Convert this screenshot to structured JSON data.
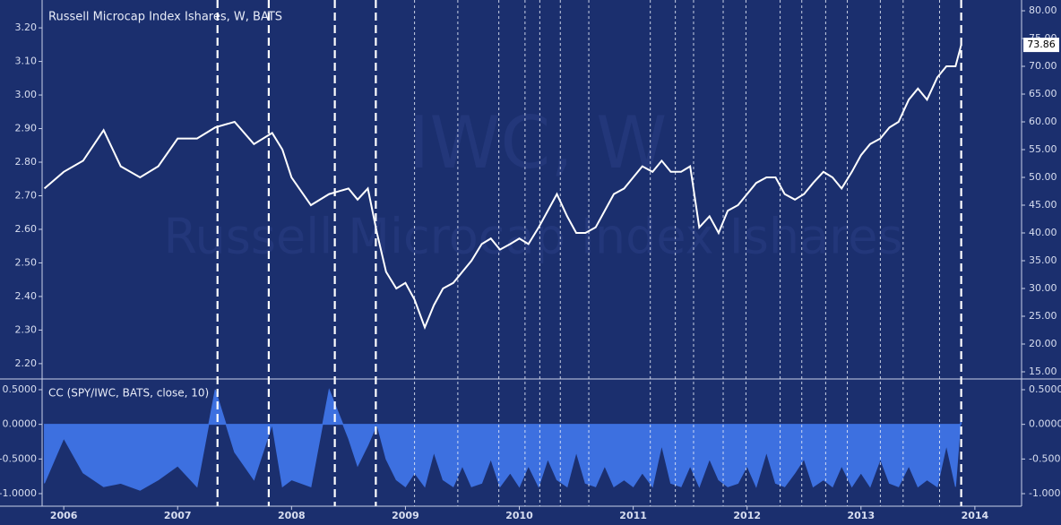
{
  "chart_data": [
    {
      "type": "line",
      "title": "Russell Microcap Index Ishares, W, BATS",
      "watermark": [
        "IWC, W",
        "Russell Microcap Index Ishares"
      ],
      "x": [
        2005.83,
        2006.0,
        2006.17,
        2006.35,
        2006.5,
        2006.67,
        2006.83,
        2007.0,
        2007.17,
        2007.33,
        2007.5,
        2007.67,
        2007.83,
        2007.92,
        2008.0,
        2008.17,
        2008.33,
        2008.5,
        2008.58,
        2008.67,
        2008.75,
        2008.83,
        2008.92,
        2009.0,
        2009.08,
        2009.17,
        2009.25,
        2009.33,
        2009.42,
        2009.5,
        2009.58,
        2009.67,
        2009.75,
        2009.83,
        2009.92,
        2010.0,
        2010.08,
        2010.17,
        2010.25,
        2010.33,
        2010.42,
        2010.5,
        2010.58,
        2010.67,
        2010.75,
        2010.83,
        2010.92,
        2011.0,
        2011.08,
        2011.17,
        2011.25,
        2011.33,
        2011.42,
        2011.5,
        2011.58,
        2011.67,
        2011.75,
        2011.83,
        2011.92,
        2012.0,
        2012.08,
        2012.17,
        2012.25,
        2012.33,
        2012.42,
        2012.5,
        2012.58,
        2012.67,
        2012.75,
        2012.83,
        2012.92,
        2013.0,
        2013.08,
        2013.17,
        2013.25,
        2013.33,
        2013.42,
        2013.5,
        2013.58,
        2013.67,
        2013.75,
        2013.83,
        2013.88
      ],
      "series": [
        {
          "color": "#ffffff",
          "axis": "y2",
          "values": [
            48,
            51,
            53,
            58.5,
            52,
            50,
            52,
            57,
            57,
            59,
            60,
            56,
            58,
            55,
            50,
            45,
            47,
            48,
            46,
            48,
            40,
            33,
            30,
            31,
            28,
            23,
            27,
            30,
            31,
            33,
            35,
            38,
            39,
            37,
            38,
            39,
            38,
            41,
            44,
            47,
            43,
            40,
            40,
            41,
            44,
            47,
            48,
            50,
            52,
            51,
            53,
            51,
            51,
            52,
            41,
            43,
            40,
            44,
            45,
            47,
            49,
            50,
            50,
            47,
            46,
            47,
            49,
            51,
            50,
            48,
            51,
            54,
            56,
            57,
            59,
            60,
            64,
            66,
            64,
            68,
            70,
            70,
            73.86
          ]
        }
      ],
      "xlim": [
        2005.81,
        2014.41
      ],
      "ylim": [
        2.157,
        3.283
      ],
      "yticks": [
        {
          "value": 2.2,
          "label": "2.20"
        },
        {
          "value": 2.3,
          "label": "2.30"
        },
        {
          "value": 2.4,
          "label": "2.40"
        },
        {
          "value": 2.5,
          "label": "2.50"
        },
        {
          "value": 2.6,
          "label": "2.60"
        },
        {
          "value": 2.7,
          "label": "2.70"
        },
        {
          "value": 2.8,
          "label": "2.80"
        },
        {
          "value": 2.9,
          "label": "2.90"
        },
        {
          "value": 3.0,
          "label": "3.00"
        },
        {
          "value": 3.1,
          "label": "3.10"
        },
        {
          "value": 3.2,
          "label": "3.20"
        }
      ],
      "y2lim": [
        13.87,
        81.94
      ],
      "y2ticks": [
        {
          "value": 15,
          "label": "15.00"
        },
        {
          "value": 20,
          "label": "20.00"
        },
        {
          "value": 25,
          "label": "25.00"
        },
        {
          "value": 30,
          "label": "30.00"
        },
        {
          "value": 35,
          "label": "35.00"
        },
        {
          "value": 40,
          "label": "40.00"
        },
        {
          "value": 45,
          "label": "45.00"
        },
        {
          "value": 50,
          "label": "50.00"
        },
        {
          "value": 55,
          "label": "55.00"
        },
        {
          "value": 60,
          "label": "60.00"
        },
        {
          "value": 65,
          "label": "65.00"
        },
        {
          "value": 70,
          "label": "70.00"
        },
        {
          "value": 75,
          "label": "75.00"
        },
        {
          "value": 80,
          "label": "80.00"
        }
      ],
      "events_major": [
        2007.35,
        2007.8,
        2008.38,
        2008.74,
        2013.88
      ],
      "events_minor": [
        2009.08,
        2009.46,
        2009.82,
        2010.05,
        2010.18,
        2010.36,
        2010.61,
        2011.15,
        2011.37,
        2011.53,
        2011.79,
        2011.99,
        2012.29,
        2012.48,
        2012.69,
        2012.88,
        2013.17,
        2013.37,
        2013.69
      ]
    },
    {
      "type": "area",
      "title": "CC (SPY/IWC, BATS, close, 10)",
      "color": "#3d70e0",
      "x": [
        2005.83,
        2006.0,
        2006.17,
        2006.35,
        2006.5,
        2006.67,
        2006.83,
        2007.0,
        2007.17,
        2007.33,
        2007.5,
        2007.67,
        2007.83,
        2007.92,
        2008.0,
        2008.17,
        2008.33,
        2008.5,
        2008.58,
        2008.67,
        2008.75,
        2008.83,
        2008.92,
        2009.0,
        2009.08,
        2009.17,
        2009.25,
        2009.33,
        2009.42,
        2009.5,
        2009.58,
        2009.67,
        2009.75,
        2009.83,
        2009.92,
        2010.0,
        2010.08,
        2010.17,
        2010.25,
        2010.33,
        2010.42,
        2010.5,
        2010.58,
        2010.67,
        2010.75,
        2010.83,
        2010.92,
        2011.0,
        2011.08,
        2011.17,
        2011.25,
        2011.33,
        2011.42,
        2011.5,
        2011.58,
        2011.67,
        2011.75,
        2011.83,
        2011.92,
        2012.0,
        2012.08,
        2012.17,
        2012.25,
        2012.33,
        2012.42,
        2012.5,
        2012.58,
        2012.67,
        2012.75,
        2012.83,
        2012.92,
        2013.0,
        2013.08,
        2013.17,
        2013.25,
        2013.33,
        2013.42,
        2013.5,
        2013.58,
        2013.67,
        2013.75,
        2013.83,
        2013.88
      ],
      "values": [
        -0.85,
        -0.2,
        -0.7,
        -0.9,
        -0.85,
        -0.95,
        -0.8,
        -0.6,
        -0.9,
        0.5,
        -0.4,
        -0.8,
        0.0,
        -0.9,
        -0.8,
        -0.9,
        0.5,
        -0.2,
        -0.6,
        -0.3,
        0.0,
        -0.5,
        -0.8,
        -0.9,
        -0.7,
        -0.9,
        -0.4,
        -0.8,
        -0.9,
        -0.6,
        -0.9,
        -0.85,
        -0.5,
        -0.9,
        -0.7,
        -0.9,
        -0.6,
        -0.9,
        -0.5,
        -0.8,
        -0.9,
        -0.4,
        -0.85,
        -0.9,
        -0.6,
        -0.9,
        -0.8,
        -0.9,
        -0.7,
        -0.9,
        -0.3,
        -0.85,
        -0.9,
        -0.6,
        -0.9,
        -0.5,
        -0.8,
        -0.9,
        -0.85,
        -0.6,
        -0.9,
        -0.4,
        -0.85,
        -0.9,
        -0.7,
        -0.5,
        -0.9,
        -0.8,
        -0.9,
        -0.6,
        -0.9,
        -0.7,
        -0.9,
        -0.5,
        -0.85,
        -0.9,
        -0.6,
        -0.9,
        -0.8,
        -0.9,
        -0.3,
        -0.9,
        0.15
      ],
      "xlim": [
        2005.81,
        2014.41
      ],
      "xticks": [
        2006,
        2007,
        2008,
        2009,
        2010,
        2011,
        2012,
        2013,
        2014
      ],
      "ylim": [
        -1.155,
        0.642
      ],
      "yticks": [
        {
          "value": 0.5,
          "label": "0.5000"
        },
        {
          "value": 0,
          "label": "0.0000"
        },
        {
          "value": -0.5,
          "label": "-0.5000"
        },
        {
          "value": -1,
          "label": "-1.0000"
        }
      ]
    }
  ]
}
